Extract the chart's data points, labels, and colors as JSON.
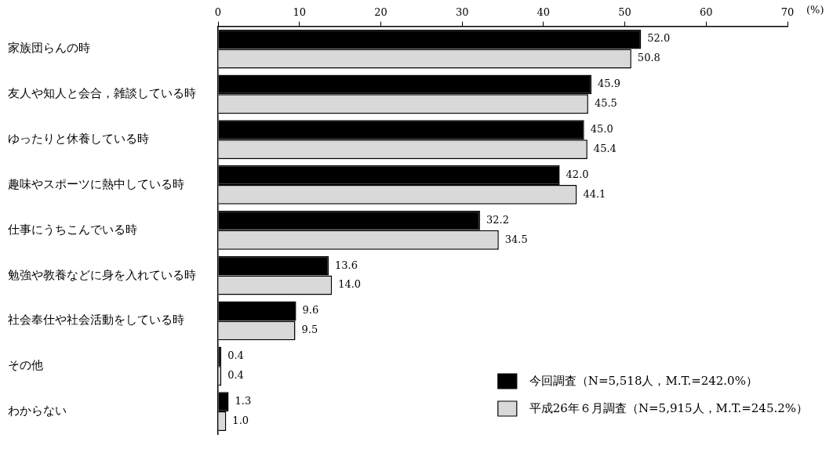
{
  "chart_data": {
    "type": "bar",
    "orientation": "horizontal",
    "xlabel": "(%)",
    "categories": [
      "家族団らんの時",
      "友人や知人と会合，雑談している時",
      "ゆったりと休養している時",
      "趣味やスポーツに熱中している時",
      "仕事にうちこんでいる時",
      "勉強や教養などに身を入れている時",
      "社会奉仕や社会活動をしている時",
      "その他",
      "わからない"
    ],
    "series": [
      {
        "name": "今回調査（N=5,518人，M.T.=242.0%）",
        "color": "#000000",
        "values": [
          52.0,
          45.9,
          45.0,
          42.0,
          32.2,
          13.6,
          9.6,
          0.4,
          1.3
        ],
        "value_labels": [
          "52.0",
          "45.9",
          "45.0",
          "42.0",
          "32.2",
          "13.6",
          "9.6",
          "0.4",
          "1.3"
        ]
      },
      {
        "name": "平成26年６月調査（N=5,915人，M.T.=245.2%）",
        "color": "#d9d9d9",
        "values": [
          50.8,
          45.5,
          45.4,
          44.1,
          34.5,
          14.0,
          9.5,
          0.4,
          1.0
        ],
        "value_labels": [
          "50.8",
          "45.5",
          "45.4",
          "44.1",
          "34.5",
          "14.0",
          "9.5",
          "0.4",
          "1.0"
        ]
      }
    ],
    "xlim": [
      0,
      70
    ],
    "xticks": [
      0,
      10,
      20,
      30,
      40,
      50,
      60,
      70
    ],
    "grid": false,
    "legend": "bottom right"
  }
}
